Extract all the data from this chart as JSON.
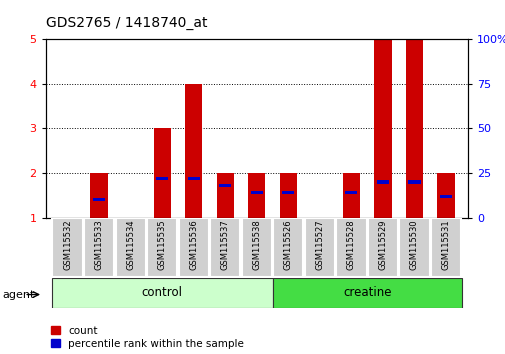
{
  "title": "GDS2765 / 1418740_at",
  "samples": [
    "GSM115532",
    "GSM115533",
    "GSM115534",
    "GSM115535",
    "GSM115536",
    "GSM115537",
    "GSM115538",
    "GSM115526",
    "GSM115527",
    "GSM115528",
    "GSM115529",
    "GSM115530",
    "GSM115531"
  ],
  "count_values": [
    1.0,
    2.0,
    1.0,
    3.0,
    4.0,
    2.0,
    2.0,
    2.0,
    1.0,
    2.0,
    5.0,
    5.0,
    2.0
  ],
  "percentile_values": [
    1.0,
    10.0,
    2.0,
    22.0,
    22.0,
    18.0,
    14.0,
    14.0,
    3.0,
    14.0,
    20.0,
    20.0,
    12.0
  ],
  "groups": [
    {
      "label": "control",
      "start": 0,
      "end": 7,
      "color": "#ccffcc"
    },
    {
      "label": "creatine",
      "start": 7,
      "end": 13,
      "color": "#44dd44"
    }
  ],
  "group_label_prefix": "agent",
  "ylim_left": [
    1,
    5
  ],
  "ylim_right": [
    0,
    100
  ],
  "yticks_left": [
    1,
    2,
    3,
    4,
    5
  ],
  "yticks_right": [
    0,
    25,
    50,
    75,
    100
  ],
  "bar_color_red": "#cc0000",
  "bar_color_blue": "#0000cc",
  "bar_width": 0.55,
  "legend_red_label": "count",
  "legend_blue_label": "percentile rank within the sample",
  "title_fontsize": 10,
  "axis_fontsize": 8
}
